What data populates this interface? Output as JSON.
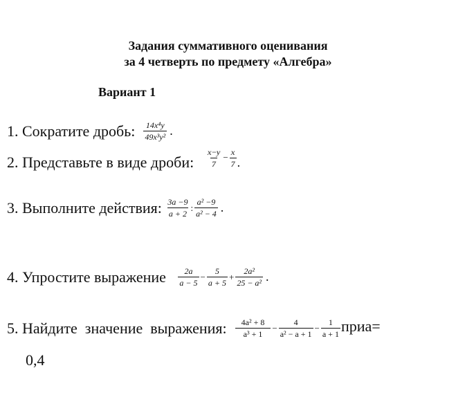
{
  "header": {
    "title_line1": "Задания суммативного оценивания",
    "title_line2": "за 4 четверть по предмету «Алгебра»",
    "variant": "Вариант 1"
  },
  "tasks": [
    {
      "label": "1. Сократите дробь:",
      "f1n": "14x⁴y",
      "f1d": "49x³y²",
      "end": "."
    },
    {
      "label": "2. Представьте в виде дроби:",
      "f1n": "x−y",
      "f1d": "7",
      "op1": "−",
      "f2n": "x",
      "f2d": "7",
      "end": "."
    },
    {
      "label": "3. Выполните действия:",
      "f1n": "3a −9",
      "f1d": "a + 2",
      "op1": ":",
      "f2n": "a² −9",
      "f2d": "a² − 4",
      "end": "."
    },
    {
      "label": "4. Упростите выражение",
      "f1n": "2a",
      "f1d": "a − 5",
      "op1": "−",
      "f2n": "5",
      "f2d": "a + 5",
      "op2": "+",
      "f3n": "2a²",
      "f3d": "25 − a²",
      "end": "."
    },
    {
      "label": "5. Найдите  значение  выражения:",
      "f1n": "4a² + 8",
      "f1d": "a³ + 1",
      "op1": "−",
      "f2n": "4",
      "f2d": "a² − a + 1",
      "op2": "−",
      "f3n": "1",
      "f3d": "a + 1",
      "end": "приa=",
      "cont": "0,4"
    }
  ]
}
